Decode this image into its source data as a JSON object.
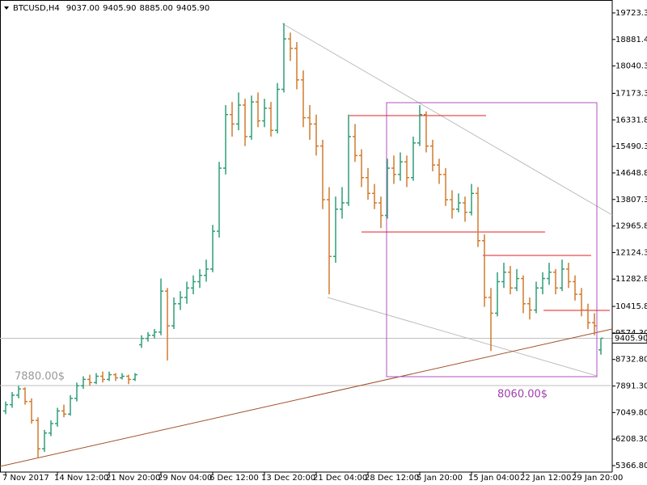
{
  "chart_data": {
    "type": "ohlc",
    "title": "BTCUSD,H4",
    "ohlc_labels": [
      "9037.00",
      "9405.90",
      "8885.00",
      "9405.90"
    ],
    "last_price_label": "9405.90",
    "annotations": [
      "7880.00$",
      "8060.00$"
    ],
    "up_color": "#2e9e78",
    "down_color": "#d17a2e",
    "ylim": [
      5162,
      20133
    ],
    "yticks": [
      {
        "value": 5366.8,
        "label": "5366.80"
      },
      {
        "value": 6208.3,
        "label": "6208.30"
      },
      {
        "value": 7049.8,
        "label": "7049.80"
      },
      {
        "value": 7891.3,
        "label": "7891.30"
      },
      {
        "value": 8732.8,
        "label": "8732.80"
      },
      {
        "value": 9574.3,
        "label": "9574.30"
      },
      {
        "value": 10415.8,
        "label": "10415.80"
      },
      {
        "value": 11282.8,
        "label": "11282.80"
      },
      {
        "value": 12124.3,
        "label": "12124.30"
      },
      {
        "value": 12965.8,
        "label": "12965.80"
      },
      {
        "value": 13807.3,
        "label": "13807.30"
      },
      {
        "value": 14648.8,
        "label": "14648.80"
      },
      {
        "value": 15490.3,
        "label": "15490.30"
      },
      {
        "value": 16331.8,
        "label": "16331.80"
      },
      {
        "value": 17173.3,
        "label": "17173.30"
      },
      {
        "value": 18040.3,
        "label": "18040.30"
      },
      {
        "value": 18881.4,
        "label": "18881.40"
      },
      {
        "value": 19723.3,
        "label": "19723.30"
      }
    ],
    "categories": [
      "7 Nov 2017",
      null,
      null,
      null,
      null,
      null,
      null,
      null,
      "14 Nov 12:00",
      null,
      null,
      null,
      null,
      null,
      null,
      null,
      "21 Nov 20:00",
      null,
      null,
      null,
      null,
      null,
      null,
      null,
      "29 Nov 04:00",
      null,
      null,
      null,
      null,
      null,
      null,
      null,
      "6 Dec 12:00",
      null,
      null,
      null,
      null,
      null,
      null,
      null,
      "13 Dec 20:00",
      null,
      null,
      null,
      null,
      null,
      null,
      null,
      "21 Dec 04:00",
      null,
      null,
      null,
      null,
      null,
      null,
      null,
      "28 Dec 12:00",
      null,
      null,
      null,
      null,
      null,
      null,
      null,
      "5 Jan 20:00",
      null,
      null,
      null,
      null,
      null,
      null,
      null,
      "15 Jan 04:00",
      null,
      null,
      null,
      null,
      null,
      null,
      null,
      "22 Jan 12:00",
      null,
      null,
      null,
      null,
      null,
      null,
      null,
      "29 Jan 20:00",
      null,
      null,
      null,
      null
    ],
    "bars": [
      [
        7100,
        7400,
        7000,
        7300
      ],
      [
        7300,
        7700,
        7200,
        7600
      ],
      [
        7600,
        7900,
        7500,
        7800
      ],
      [
        7800,
        7850,
        7300,
        7400
      ],
      [
        7400,
        7500,
        6700,
        6800
      ],
      [
        6800,
        6900,
        5600,
        5900
      ],
      [
        5900,
        6500,
        5800,
        6400
      ],
      [
        6400,
        6800,
        6300,
        6700
      ],
      [
        6700,
        7200,
        6600,
        7100
      ],
      [
        7100,
        7300,
        6900,
        7000
      ],
      [
        7000,
        7600,
        6950,
        7500
      ],
      [
        7500,
        8000,
        7400,
        7900
      ],
      [
        7900,
        8200,
        7800,
        8100
      ],
      [
        8100,
        8250,
        7900,
        8000
      ],
      [
        8000,
        8300,
        7950,
        8200
      ],
      [
        8200,
        8350,
        8000,
        8100
      ],
      [
        8100,
        8350,
        8050,
        8250
      ],
      [
        8250,
        8300,
        8050,
        8150
      ],
      [
        8150,
        8300,
        8100,
        8200
      ],
      [
        8200,
        8250,
        7950,
        8100
      ],
      [
        8100,
        8300,
        8050,
        8250
      ],
      [
        9200,
        9500,
        9100,
        9400
      ],
      [
        9400,
        9600,
        9300,
        9500
      ],
      [
        9500,
        9700,
        9400,
        9600
      ],
      [
        9600,
        11300,
        9500,
        10900
      ],
      [
        10900,
        11000,
        8700,
        9800
      ],
      [
        9800,
        10700,
        9700,
        10500
      ],
      [
        10500,
        10900,
        10300,
        10700
      ],
      [
        10700,
        11200,
        10500,
        11000
      ],
      [
        11000,
        11400,
        10800,
        11200
      ],
      [
        11200,
        11600,
        11000,
        11400
      ],
      [
        11400,
        11900,
        11200,
        11600
      ],
      [
        11600,
        13000,
        11500,
        12800
      ],
      [
        12800,
        15000,
        12600,
        14800
      ],
      [
        14800,
        16800,
        14600,
        16500
      ],
      [
        16500,
        16900,
        15800,
        16200
      ],
      [
        16200,
        17200,
        16000,
        16800
      ],
      [
        16800,
        17000,
        15500,
        15800
      ],
      [
        15800,
        17100,
        15700,
        16900
      ],
      [
        16900,
        17200,
        16100,
        16300
      ],
      [
        16300,
        17000,
        16100,
        16700
      ],
      [
        16700,
        16900,
        15800,
        16000
      ],
      [
        16000,
        17500,
        15900,
        17300
      ],
      [
        17300,
        19400,
        17200,
        18900
      ],
      [
        18900,
        19100,
        18200,
        18600
      ],
      [
        18600,
        18800,
        17300,
        17600
      ],
      [
        17600,
        17900,
        16100,
        16400
      ],
      [
        16400,
        16800,
        15700,
        16200
      ],
      [
        16200,
        16500,
        15200,
        15500
      ],
      [
        15500,
        15700,
        13500,
        13800
      ],
      [
        13800,
        14200,
        10800,
        12000
      ],
      [
        12000,
        13900,
        11800,
        13500
      ],
      [
        13500,
        14200,
        13200,
        13700
      ],
      [
        13700,
        16500,
        13600,
        15800
      ],
      [
        15800,
        16200,
        15000,
        15200
      ],
      [
        15200,
        15400,
        14200,
        14500
      ],
      [
        14500,
        14800,
        13800,
        14000
      ],
      [
        14000,
        14300,
        13500,
        13700
      ],
      [
        13700,
        13900,
        12900,
        13300
      ],
      [
        13300,
        15100,
        13200,
        14800
      ],
      [
        14800,
        15200,
        14300,
        14600
      ],
      [
        14600,
        15300,
        14400,
        15000
      ],
      [
        15000,
        15200,
        14200,
        14500
      ],
      [
        14500,
        15800,
        14400,
        15600
      ],
      [
        15600,
        16800,
        15500,
        16500
      ],
      [
        16500,
        16600,
        15300,
        15500
      ],
      [
        15500,
        15700,
        14700,
        14900
      ],
      [
        14900,
        15100,
        14300,
        14600
      ],
      [
        14600,
        14800,
        13600,
        13800
      ],
      [
        13800,
        14100,
        13200,
        13500
      ],
      [
        13500,
        14000,
        13400,
        13700
      ],
      [
        13700,
        13900,
        13100,
        13400
      ],
      [
        13400,
        14300,
        13300,
        14000
      ],
      [
        14000,
        14200,
        12300,
        12500
      ],
      [
        12500,
        12700,
        10400,
        10700
      ],
      [
        10700,
        11000,
        9000,
        10200
      ],
      [
        10200,
        11500,
        10100,
        11200
      ],
      [
        11200,
        11800,
        11000,
        11500
      ],
      [
        11500,
        11700,
        10800,
        11000
      ],
      [
        11000,
        11600,
        10900,
        11300
      ],
      [
        11300,
        11400,
        10200,
        10500
      ],
      [
        10500,
        10700,
        10000,
        10300
      ],
      [
        10300,
        11200,
        10200,
        11000
      ],
      [
        11000,
        11500,
        10800,
        11300
      ],
      [
        11300,
        11800,
        11100,
        11500
      ],
      [
        11500,
        11600,
        10800,
        11000
      ],
      [
        11000,
        11900,
        10900,
        11600
      ],
      [
        11600,
        11800,
        11000,
        11200
      ],
      [
        11200,
        11400,
        10600,
        10800
      ],
      [
        10800,
        11000,
        10100,
        10300
      ],
      [
        10300,
        10500,
        9700,
        9900
      ],
      [
        9900,
        10200,
        9500,
        9800
      ],
      [
        9037,
        9405.9,
        8885,
        9405.9
      ]
    ]
  }
}
